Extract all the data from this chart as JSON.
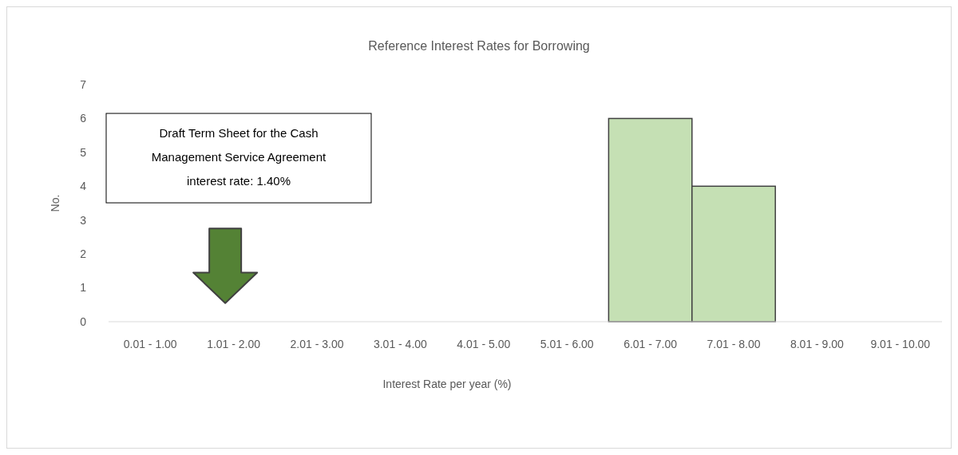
{
  "chart_data": {
    "type": "bar",
    "title": "Reference Interest Rates for Borrowing",
    "xlabel": "Interest Rate per  year (%)",
    "ylabel": "No.",
    "categories": [
      "0.01 - 1.00",
      "1.01 - 2.00",
      "2.01 - 3.00",
      "3.01 - 4.00",
      "4.01 - 5.00",
      "5.01 - 6.00",
      "6.01 - 7.00",
      "7.01 - 8.00",
      "8.01 - 9.00",
      "9.01 - 10.00"
    ],
    "values": [
      0,
      0,
      0,
      0,
      0,
      0,
      6,
      4,
      0,
      0
    ],
    "color": "#c5e0b4",
    "ylim": [
      0,
      7
    ],
    "yticks": [
      0,
      1,
      2,
      3,
      4,
      5,
      6,
      7
    ],
    "annotations": [
      "Draft Term Sheet for the Cash Management Service Agreement",
      "interest rate: 1.40%"
    ]
  }
}
